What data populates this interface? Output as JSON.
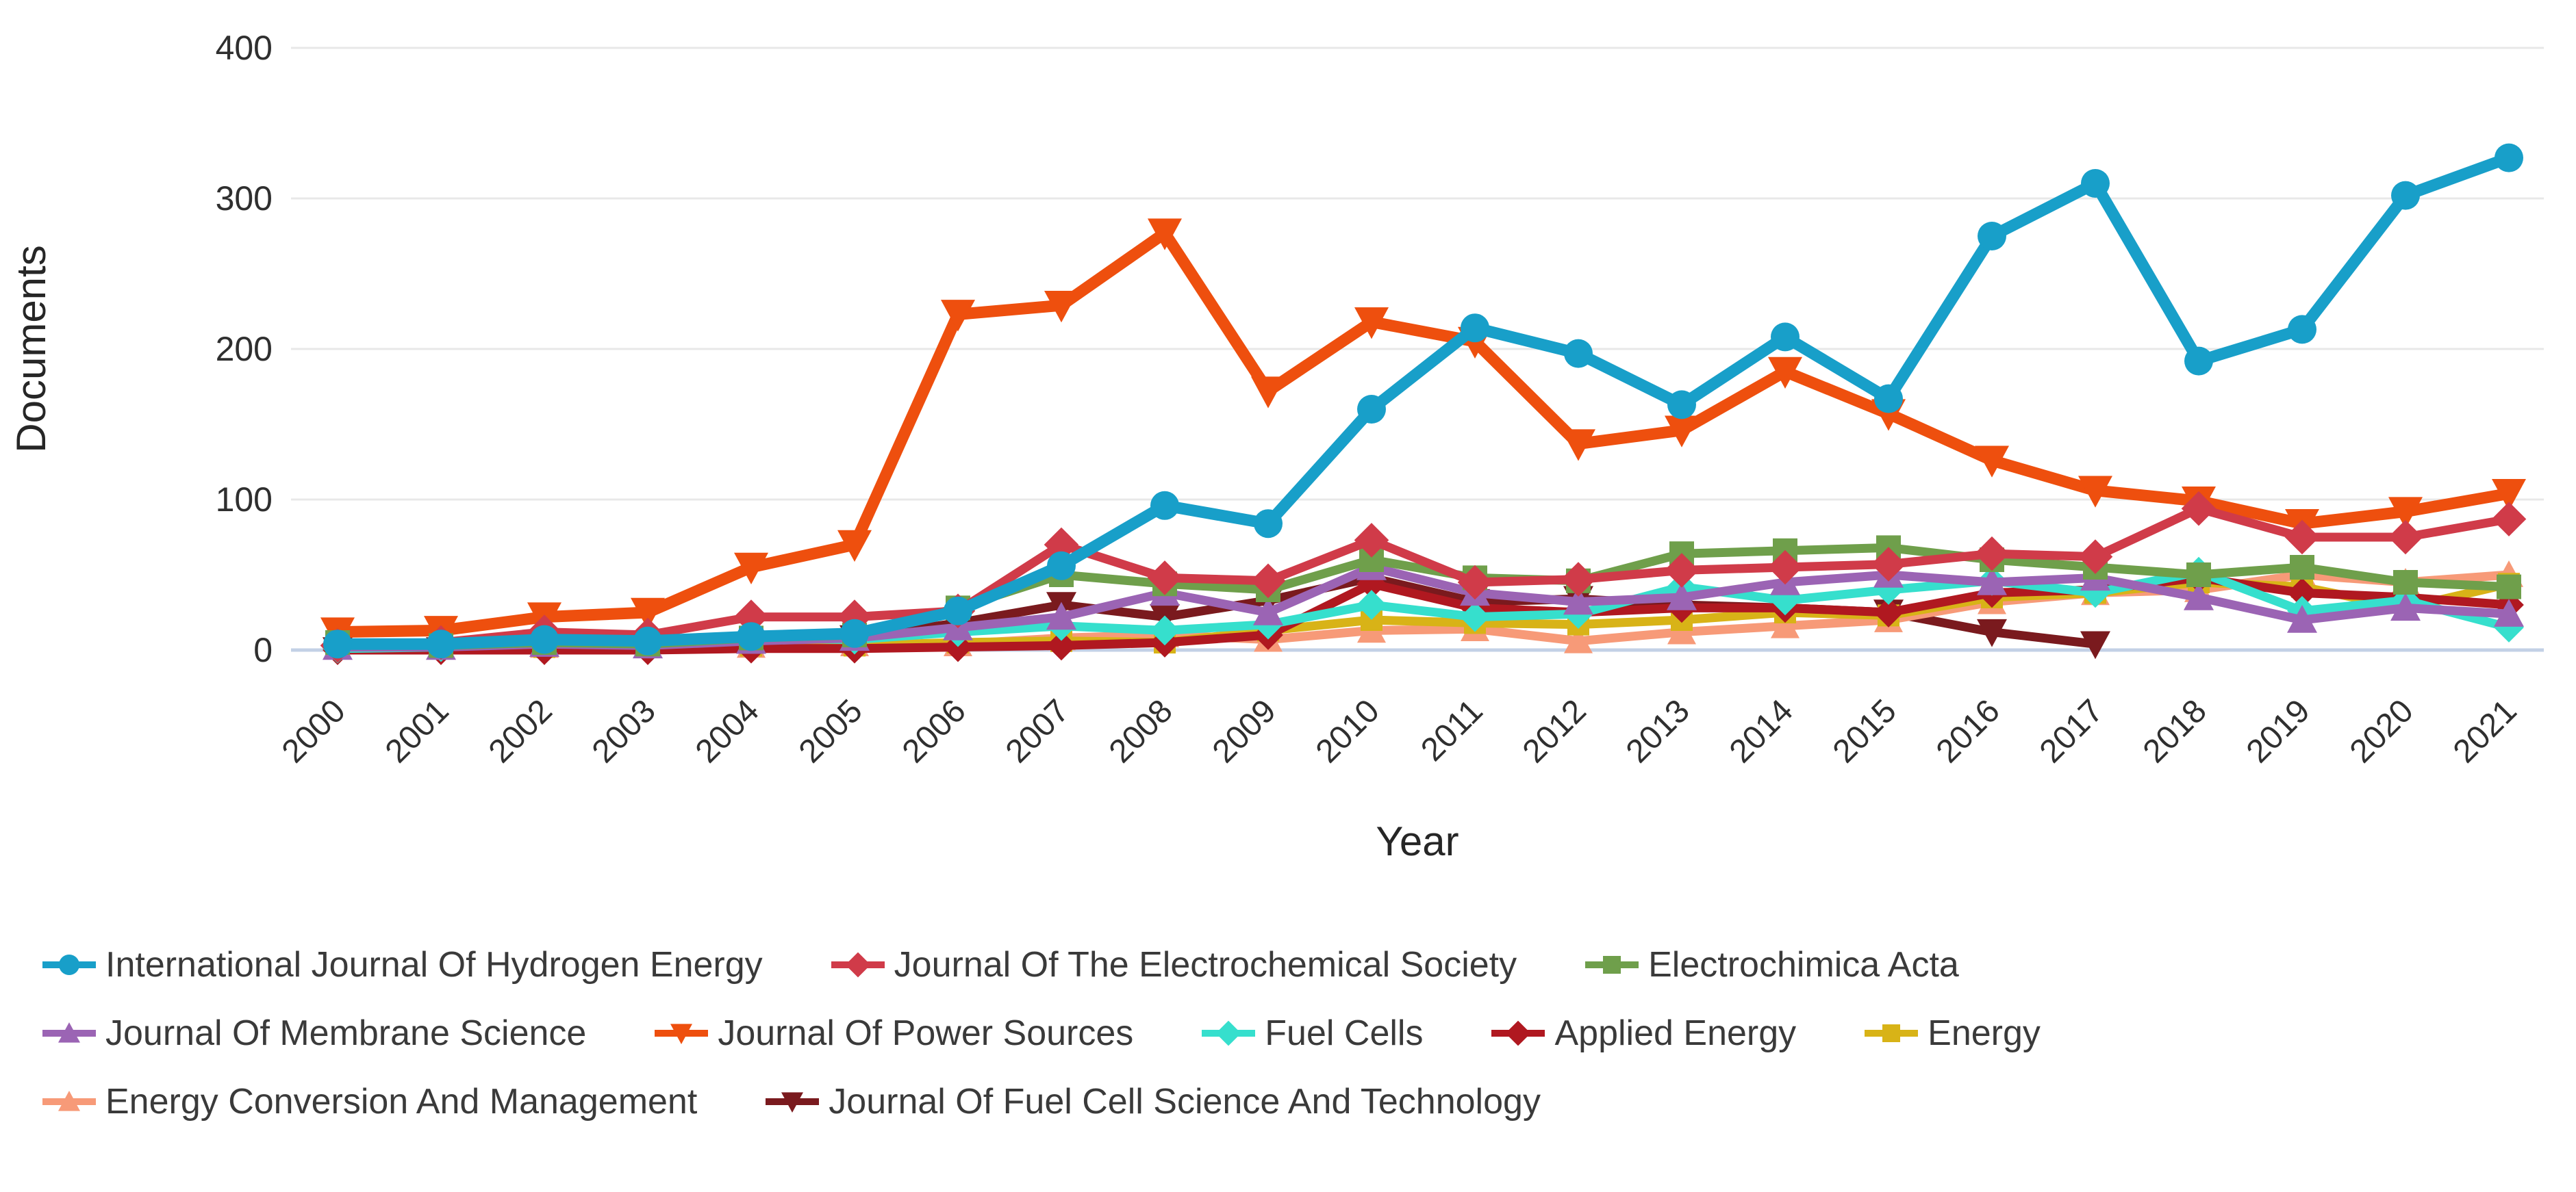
{
  "chart_data": {
    "type": "line",
    "title": "",
    "xlabel": "Year",
    "ylabel": "Documents",
    "ylim": [
      0,
      400
    ],
    "yticks": [
      0,
      100,
      200,
      300,
      400
    ],
    "grid": "horizontal",
    "legend_position": "bottom",
    "x": [
      2000,
      2001,
      2002,
      2003,
      2004,
      2005,
      2006,
      2007,
      2008,
      2009,
      2010,
      2011,
      2012,
      2013,
      2014,
      2015,
      2016,
      2017,
      2018,
      2019,
      2020,
      2021
    ],
    "series": [
      {
        "name": "International Journal Of Hydrogen Energy",
        "color": "#189fc9",
        "marker": "circle",
        "values": [
          4,
          4,
          7,
          6,
          9,
          11,
          26,
          56,
          96,
          84,
          160,
          214,
          197,
          163,
          208,
          167,
          275,
          310,
          192,
          213,
          302,
          327
        ]
      },
      {
        "name": "Journal Of The Electrochemical Society",
        "color": "#d03b49",
        "marker": "diamond",
        "values": [
          3,
          5,
          12,
          10,
          22,
          22,
          26,
          70,
          48,
          46,
          73,
          45,
          47,
          53,
          55,
          57,
          64,
          62,
          94,
          75,
          75,
          87
        ]
      },
      {
        "name": "Electrochimica Acta",
        "color": "#6f9f4b",
        "marker": "square",
        "values": [
          5,
          3,
          5,
          4,
          8,
          10,
          28,
          50,
          44,
          40,
          60,
          48,
          46,
          64,
          66,
          68,
          60,
          55,
          50,
          55,
          45,
          42
        ]
      },
      {
        "name": "Journal Of Membrane Science",
        "color": "#9b64b4",
        "marker": "triangle-up",
        "values": [
          2,
          2,
          4,
          3,
          6,
          8,
          15,
          22,
          38,
          25,
          55,
          38,
          32,
          35,
          45,
          50,
          45,
          48,
          35,
          20,
          28,
          24
        ]
      },
      {
        "name": "Journal Of Power Sources",
        "color": "#ee4f0e",
        "marker": "triangle-down",
        "values": [
          12,
          13,
          22,
          25,
          55,
          70,
          223,
          229,
          277,
          172,
          218,
          205,
          137,
          146,
          185,
          157,
          126,
          106,
          99,
          84,
          92,
          104
        ]
      },
      {
        "name": "Fuel Cells",
        "color": "#36dfcd",
        "marker": "diamond",
        "values": [
          1,
          2,
          8,
          5,
          8,
          7,
          12,
          16,
          13,
          17,
          30,
          22,
          24,
          42,
          33,
          40,
          46,
          38,
          52,
          26,
          33,
          15
        ]
      },
      {
        "name": "Applied Energy",
        "color": "#b01820",
        "marker": "diamond",
        "values": [
          0,
          0,
          0,
          0,
          1,
          1,
          2,
          3,
          5,
          10,
          44,
          28,
          25,
          28,
          28,
          25,
          38,
          40,
          48,
          38,
          35,
          30
        ]
      },
      {
        "name": "Energy",
        "color": "#d8b317",
        "marker": "square",
        "values": [
          1,
          1,
          2,
          2,
          3,
          3,
          5,
          6,
          5,
          13,
          20,
          18,
          17,
          20,
          25,
          23,
          35,
          38,
          45,
          42,
          28,
          44
        ]
      },
      {
        "name": "Energy Conversion And Management",
        "color": "#f79a78",
        "marker": "triangle-up",
        "values": [
          2,
          2,
          3,
          3,
          3,
          4,
          4,
          8,
          10,
          7,
          13,
          14,
          6,
          12,
          16,
          20,
          32,
          38,
          40,
          50,
          45,
          50
        ]
      },
      {
        "name": "Journal Of Fuel Cell Science And Technology",
        "color": "#7a1a1e",
        "marker": "triangle-down",
        "values": [
          0,
          0,
          0,
          0,
          2,
          8,
          18,
          30,
          22,
          33,
          48,
          32,
          34,
          30,
          28,
          25,
          12,
          4,
          null,
          null,
          null,
          null
        ]
      }
    ],
    "legend_rows": [
      [
        0,
        1,
        2
      ],
      [
        3,
        4,
        5,
        6,
        7
      ],
      [
        8,
        9
      ]
    ]
  }
}
